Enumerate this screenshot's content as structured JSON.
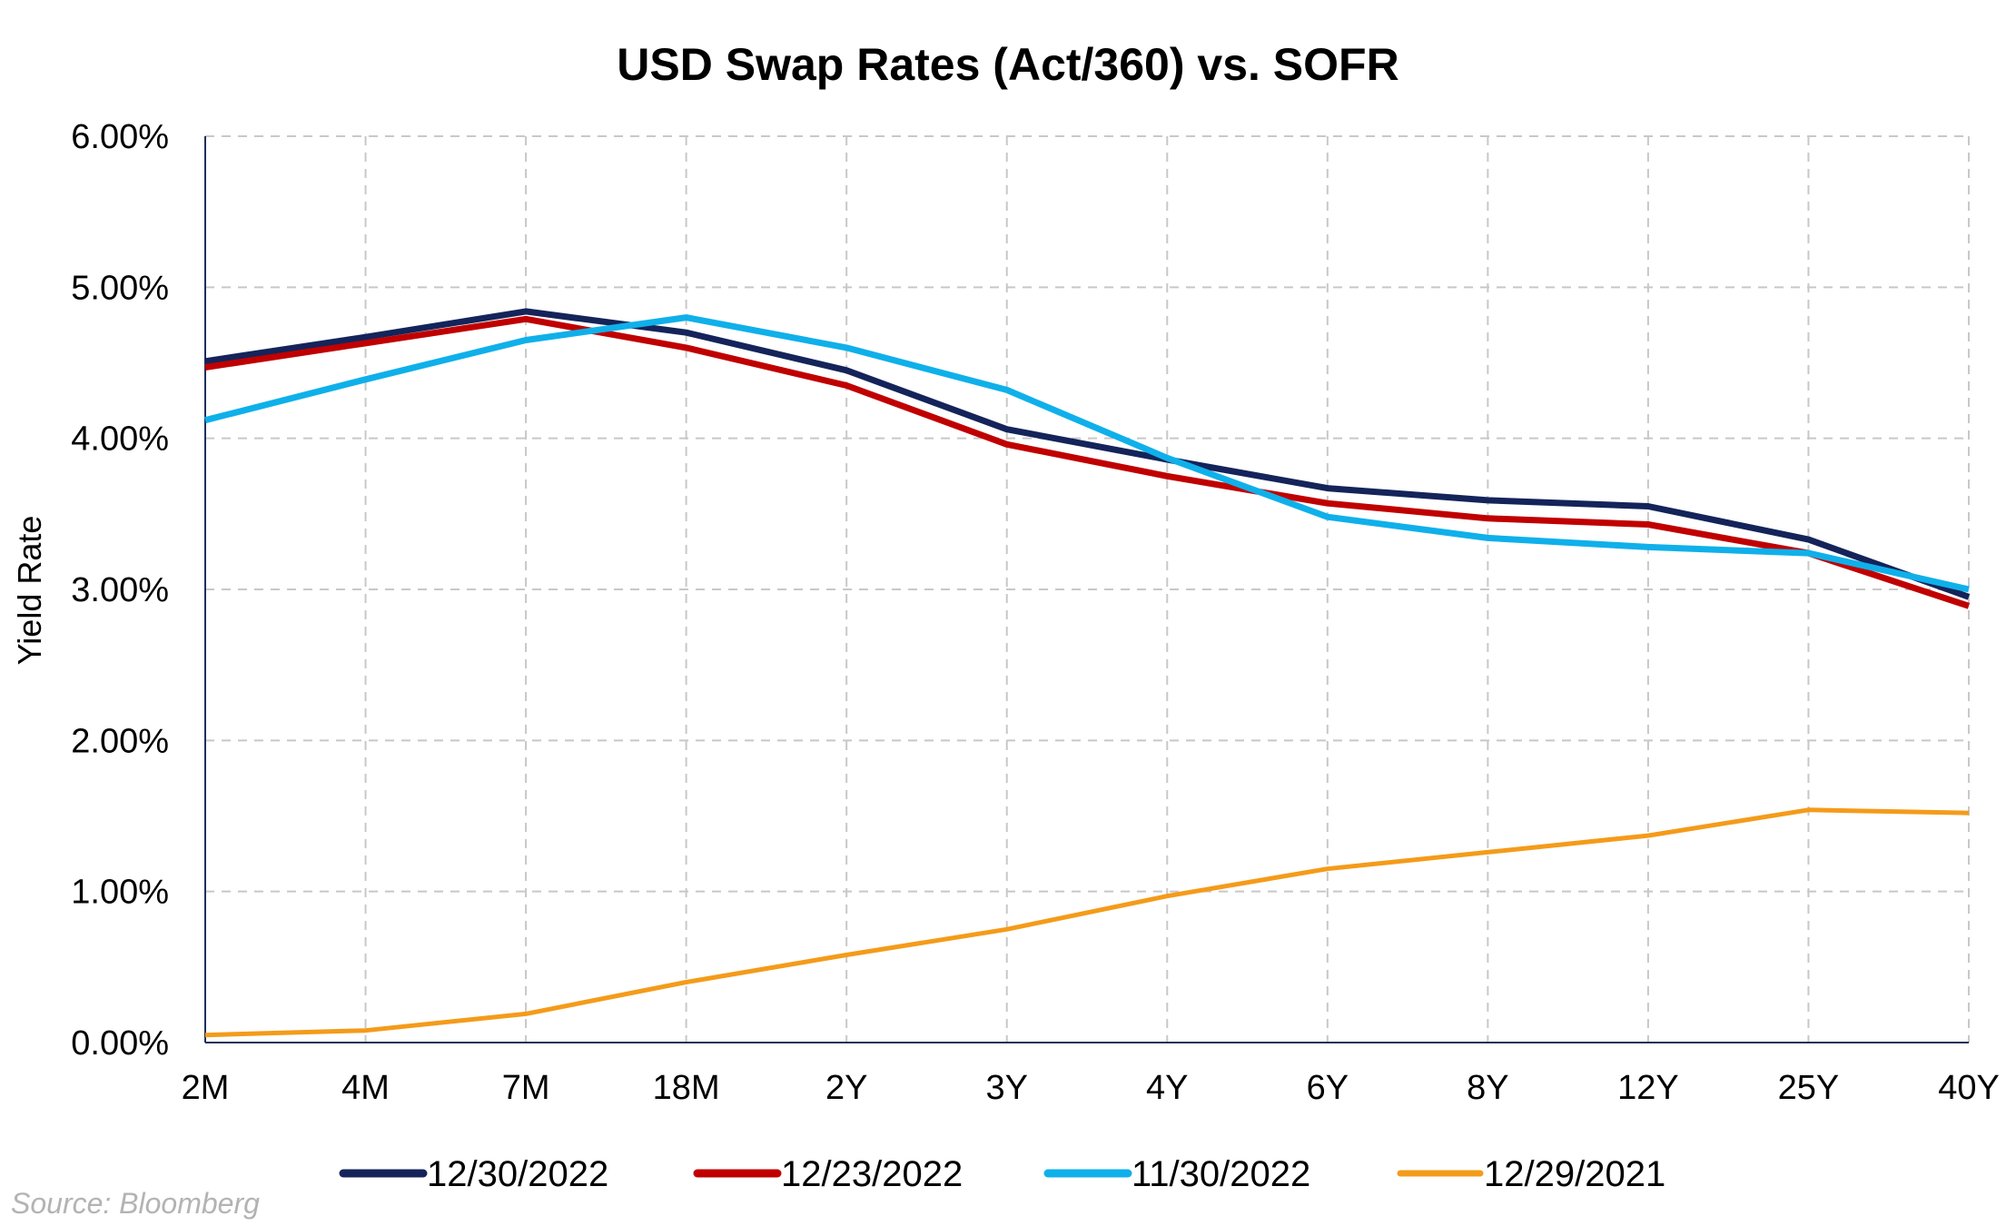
{
  "chart_data": {
    "type": "line",
    "title": "USD Swap Rates (Act/360) vs. SOFR",
    "ylabel": "Yield Rate",
    "xlabel": "",
    "ylim": [
      0,
      6
    ],
    "y_ticks": [
      "0.00%",
      "1.00%",
      "2.00%",
      "3.00%",
      "4.00%",
      "5.00%",
      "6.00%"
    ],
    "y_tick_values": [
      0,
      1,
      2,
      3,
      4,
      5,
      6
    ],
    "categories": [
      "2M",
      "4M",
      "7M",
      "18M",
      "2Y",
      "3Y",
      "4Y",
      "6Y",
      "8Y",
      "12Y",
      "25Y",
      "40Y"
    ],
    "grid": true,
    "legend_position": "bottom",
    "series": [
      {
        "name": "12/30/2022",
        "color": "#14245a",
        "values": [
          4.51,
          4.67,
          4.84,
          4.7,
          4.45,
          4.06,
          3.86,
          3.67,
          3.59,
          3.55,
          3.33,
          2.95
        ]
      },
      {
        "name": "12/23/2022",
        "color": "#c00000",
        "values": [
          4.47,
          4.63,
          4.79,
          4.6,
          4.35,
          3.96,
          3.75,
          3.57,
          3.47,
          3.43,
          3.24,
          2.89
        ]
      },
      {
        "name": "11/30/2022",
        "color": "#0fb0ea",
        "values": [
          4.12,
          4.39,
          4.65,
          4.8,
          4.6,
          4.32,
          3.87,
          3.48,
          3.34,
          3.28,
          3.24,
          3.0
        ]
      },
      {
        "name": "12/29/2021",
        "color": "#f49b1a",
        "values": [
          0.05,
          0.08,
          0.19,
          0.4,
          0.58,
          0.75,
          0.97,
          1.15,
          1.26,
          1.37,
          1.54,
          1.52
        ]
      }
    ]
  },
  "source_note": "Source: Bloomberg"
}
